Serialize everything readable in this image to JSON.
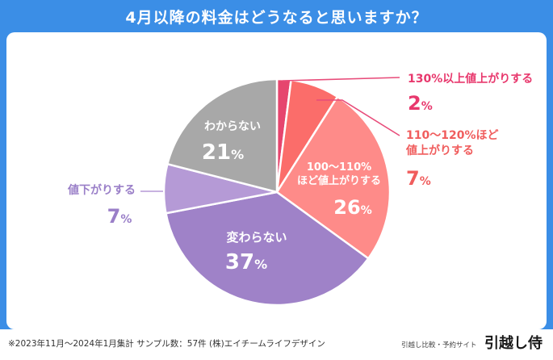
{
  "colors": {
    "background": "#3b8ee6",
    "card": "#ffffff",
    "leader_line": "#e84c7a"
  },
  "chart_data": {
    "type": "pie",
    "title": "4月以降の料金はどうなると思いますか？",
    "unit": "%",
    "start": "top",
    "direction": "clockwise",
    "slices": [
      {
        "label": "130%以上値上がりする",
        "value": 2,
        "color": "#e6456e",
        "label_color": "#e8386d",
        "label_position": "outside-right"
      },
      {
        "label": "110～120%ほど値上がりする",
        "value": 7,
        "color": "#fb6d6a",
        "label_color": "#f05d5d",
        "label_position": "outside-right"
      },
      {
        "label": "100～110%ほど値上がりする",
        "value": 26,
        "color": "#fe8b89",
        "label_color": "#ffffff",
        "label_position": "inside"
      },
      {
        "label": "変わらない",
        "value": 37,
        "color": "#9f82c8",
        "label_color": "#ffffff",
        "label_position": "inside"
      },
      {
        "label": "値下がりする",
        "value": 7,
        "color": "#b59ad6",
        "label_color": "#9a7fc8",
        "label_position": "outside-left"
      },
      {
        "label": "わからない",
        "value": 21,
        "color": "#a8a8a8",
        "label_color": "#ffffff",
        "label_position": "inside"
      }
    ],
    "label_lines": {
      "130%以上値上がりする": [
        "130%以上値上がりする"
      ],
      "110～120%ほど値上がりする": [
        "110～120%ほど",
        "値上がりする"
      ],
      "100～110%ほど値上がりする": [
        "100～110%",
        "ほど値上がりする"
      ],
      "変わらない": [
        "変わらない"
      ],
      "値下がりする": [
        "値下がりする"
      ],
      "わからない": [
        "わからない"
      ]
    }
  },
  "footer": {
    "note": "※2023年11月～2024年1月集計 サンプル数：57件 (株)エイチームライフデザイン",
    "brand_caption": "引越し比較・予約サイト",
    "brand_name": "引越し侍"
  }
}
